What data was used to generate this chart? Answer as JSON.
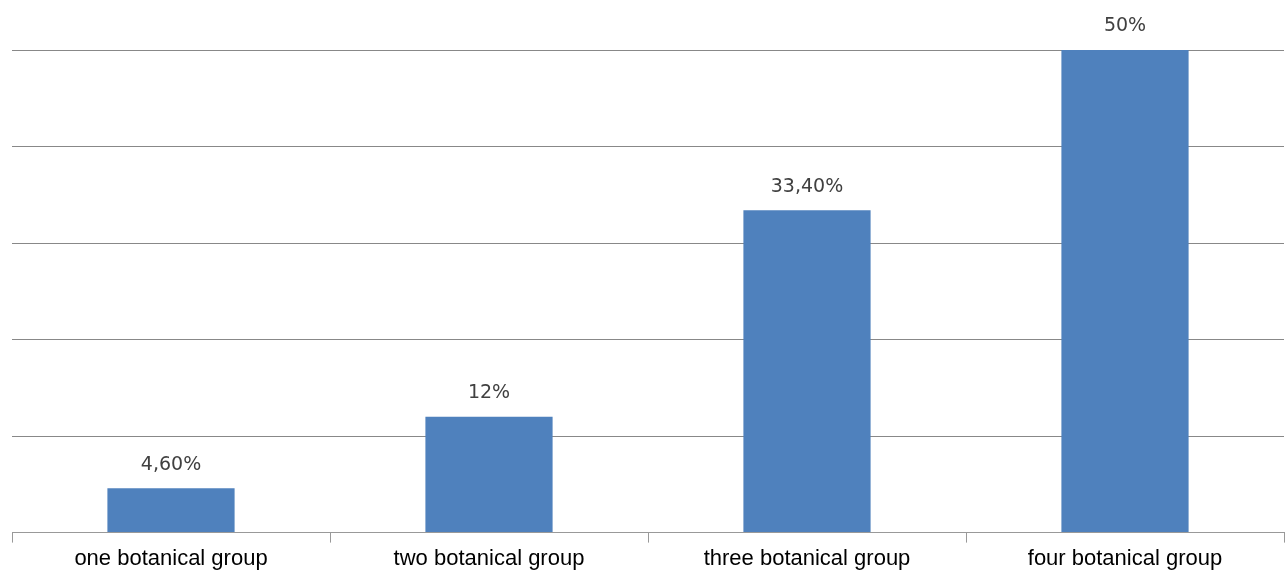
{
  "chart_data": {
    "type": "bar",
    "categories": [
      "one botanical group",
      "two botanical group",
      "three botanical group",
      "four botanical group"
    ],
    "values": [
      4.6,
      12,
      33.4,
      50
    ],
    "value_labels": [
      "4,60%",
      "12%",
      "33,40%",
      "50%"
    ],
    "color": "#4f81bd",
    "ylim": [
      0,
      50
    ],
    "yticks": [
      {
        "value": 0,
        "label": null
      },
      {
        "value": 10,
        "label": null
      },
      {
        "value": 20,
        "label": null
      },
      {
        "value": 30,
        "label": null
      },
      {
        "value": 40,
        "label": null
      },
      {
        "value": 50,
        "label": null
      }
    ],
    "grid": "y",
    "tick_labels": "x"
  }
}
